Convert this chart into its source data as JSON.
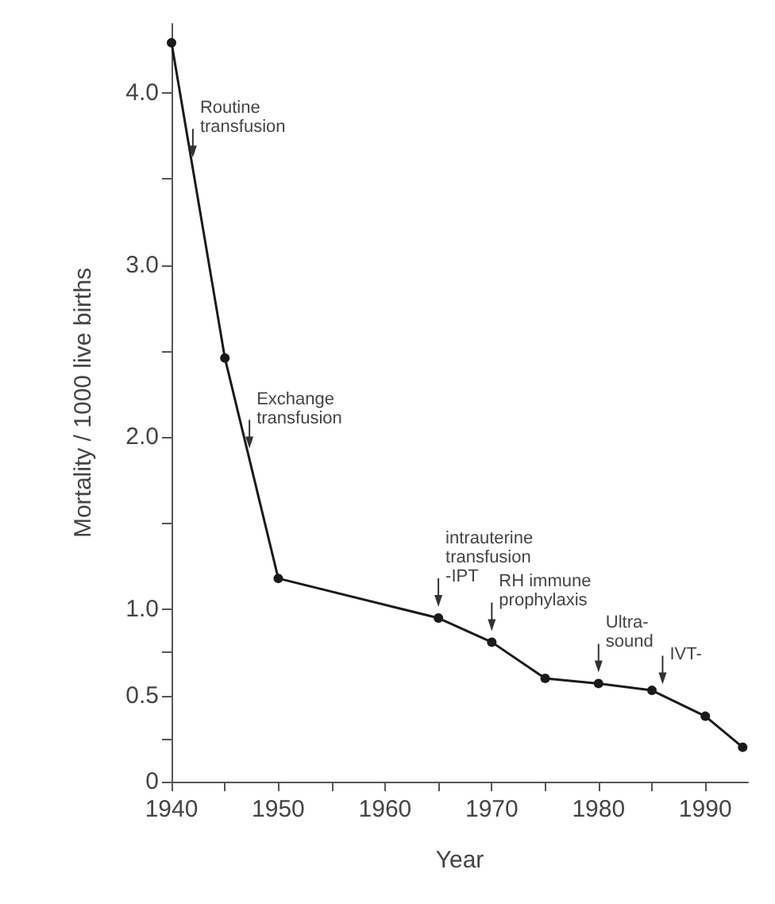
{
  "chart_data": {
    "type": "line",
    "xlabel": "Year",
    "ylabel": "Mortality / 1000 live births",
    "x": [
      1940,
      1945,
      1950,
      1965,
      1970,
      1975,
      1980,
      1985,
      1990,
      1993.5
    ],
    "series": [
      {
        "color": "#1a1a1a",
        "values": [
          4.29,
          2.46,
          1.18,
          0.95,
          0.81,
          0.6,
          0.57,
          0.53,
          0.38,
          0.2
        ]
      }
    ],
    "xlim": [
      1940,
      1994
    ],
    "xticks": [
      1940,
      {
        "value": 1945,
        "label": null
      },
      1950,
      {
        "value": 1955,
        "label": null
      },
      1960,
      {
        "value": 1965,
        "label": null
      },
      1970,
      {
        "value": 1975,
        "label": null
      },
      1980,
      {
        "value": 1985,
        "label": null
      },
      1990
    ],
    "ylim": [
      0,
      4.4
    ],
    "yticks": [
      0,
      {
        "value": 0.25,
        "label": null
      },
      0.5,
      {
        "value": 0.75,
        "label": null
      },
      {
        "value": 1,
        "label": "1.0"
      },
      {
        "value": 1.5,
        "label": null
      },
      {
        "value": 2,
        "label": "2.0"
      },
      {
        "value": 2.5,
        "label": null
      },
      {
        "value": 3,
        "label": "3.0"
      },
      {
        "value": 3.5,
        "label": null
      },
      {
        "value": 4,
        "label": "4.0"
      }
    ],
    "grid": false,
    "marker": "circle",
    "line_style": "solid",
    "annotations": [
      {
        "text": "Routine\ntransfusion",
        "x": 1942,
        "y": 3.56
      },
      {
        "text": "Exchange\ntransfusion",
        "x": 1947.3,
        "y": 1.87
      },
      {
        "text": "intrauterine\ntransfusion\n-IPT",
        "x": 1965,
        "y": 0.95
      },
      {
        "text": "RH immune\nprophylaxis",
        "x": 1970,
        "y": 0.81
      },
      {
        "text": "Ultra-\nsound",
        "x": 1980,
        "y": 0.57
      },
      {
        "text": "IVT-",
        "x": 1986,
        "y": 0.5
      }
    ]
  }
}
